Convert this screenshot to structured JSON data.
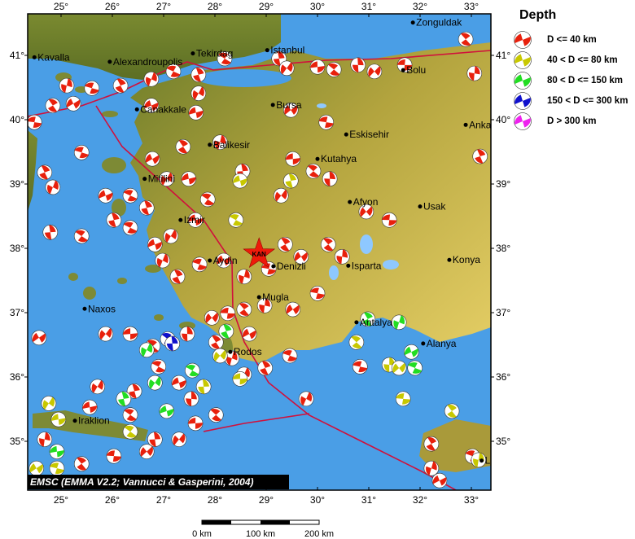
{
  "legend": {
    "title": "Depth",
    "items": [
      {
        "label": "D <= 40 km",
        "color": "#e8200c"
      },
      {
        "label": "40 < D <= 80 km",
        "color": "#c8c800"
      },
      {
        "label": "80 < D <= 150 km",
        "color": "#22dd22"
      },
      {
        "label": "150 < D <= 300 km",
        "color": "#1010cc"
      },
      {
        "label": "D > 300 km",
        "color": "#ee22ee"
      }
    ]
  },
  "attribution": "EMSC (EMMA V2.2; Vannucci & Gasperini, 2004)",
  "axes": {
    "lon_ticks": [
      "25°",
      "26°",
      "27°",
      "28°",
      "29°",
      "30°",
      "31°",
      "32°",
      "33°"
    ],
    "lat_ticks": [
      "41°",
      "40°",
      "39°",
      "38°",
      "37°",
      "36°",
      "35°"
    ]
  },
  "scale_bar": {
    "labels": [
      "0 km",
      "100 km",
      "200 km"
    ]
  },
  "colors": {
    "sea": "#4a9ee6",
    "land_low": "#6d7d2a",
    "land_high": "#e0c860",
    "fault": "#d0103c"
  },
  "epicenter": {
    "label": "KAN",
    "lon": 28.86,
    "lat": 37.91,
    "color": "#ee1a0a"
  },
  "cities": [
    {
      "name": "Kavalla",
      "lon": 24.48,
      "lat": 40.97
    },
    {
      "name": "Alexandroupolis",
      "lon": 25.95,
      "lat": 40.9
    },
    {
      "name": "Tekirdag",
      "lon": 27.57,
      "lat": 41.03
    },
    {
      "name": "Istanbul",
      "lon": 29.02,
      "lat": 41.08
    },
    {
      "name": "Zonguldak",
      "lon": 31.86,
      "lat": 41.51
    },
    {
      "name": "Bolu",
      "lon": 31.67,
      "lat": 40.77
    },
    {
      "name": "Canakkale",
      "lon": 26.48,
      "lat": 40.16
    },
    {
      "name": "Bursa",
      "lon": 29.13,
      "lat": 40.23
    },
    {
      "name": "Eskisehir",
      "lon": 30.56,
      "lat": 39.77
    },
    {
      "name": "Anka",
      "lon": 32.89,
      "lat": 39.92
    },
    {
      "name": "Balikesir",
      "lon": 27.9,
      "lat": 39.61
    },
    {
      "name": "Kutahya",
      "lon": 30.0,
      "lat": 39.39
    },
    {
      "name": "Mitilini",
      "lon": 26.63,
      "lat": 39.08
    },
    {
      "name": "Izmir",
      "lon": 27.33,
      "lat": 38.44
    },
    {
      "name": "Afyon",
      "lon": 30.63,
      "lat": 38.72
    },
    {
      "name": "Usak",
      "lon": 32.0,
      "lat": 38.65
    },
    {
      "name": "Aydin",
      "lon": 27.9,
      "lat": 37.81
    },
    {
      "name": "Denizli",
      "lon": 29.14,
      "lat": 37.72
    },
    {
      "name": "Isparta",
      "lon": 30.6,
      "lat": 37.73
    },
    {
      "name": "Konya",
      "lon": 32.57,
      "lat": 37.82
    },
    {
      "name": "Naxos",
      "lon": 25.46,
      "lat": 37.06
    },
    {
      "name": "Mugla",
      "lon": 28.86,
      "lat": 37.24
    },
    {
      "name": "Antalya",
      "lon": 30.76,
      "lat": 36.85
    },
    {
      "name": "Alanya",
      "lon": 32.06,
      "lat": 36.52
    },
    {
      "name": "Rodos",
      "lon": 28.3,
      "lat": 36.39
    },
    {
      "name": "Iraklion",
      "lon": 25.27,
      "lat": 35.32
    },
    {
      "name": "Li",
      "lon": 33.2,
      "lat": 34.7
    }
  ],
  "events": [
    {
      "lon": 24.48,
      "lat": 39.96,
      "d": 0
    },
    {
      "lon": 24.84,
      "lat": 40.22,
      "d": 0
    },
    {
      "lon": 25.11,
      "lat": 40.53,
      "d": 0
    },
    {
      "lon": 25.24,
      "lat": 40.25,
      "d": 0
    },
    {
      "lon": 25.6,
      "lat": 40.49,
      "d": 0
    },
    {
      "lon": 26.16,
      "lat": 40.53,
      "d": 0
    },
    {
      "lon": 26.76,
      "lat": 40.63,
      "d": 0
    },
    {
      "lon": 26.76,
      "lat": 40.22,
      "d": 0
    },
    {
      "lon": 27.19,
      "lat": 40.75,
      "d": 0
    },
    {
      "lon": 27.68,
      "lat": 40.7,
      "d": 0
    },
    {
      "lon": 27.68,
      "lat": 40.41,
      "d": 0
    },
    {
      "lon": 27.63,
      "lat": 40.11,
      "d": 0
    },
    {
      "lon": 28.19,
      "lat": 40.95,
      "d": 0
    },
    {
      "lon": 29.25,
      "lat": 40.95,
      "d": 0
    },
    {
      "lon": 29.4,
      "lat": 40.8,
      "d": 0
    },
    {
      "lon": 30.0,
      "lat": 40.82,
      "d": 0
    },
    {
      "lon": 30.32,
      "lat": 40.78,
      "d": 0
    },
    {
      "lon": 30.79,
      "lat": 40.85,
      "d": 0
    },
    {
      "lon": 31.11,
      "lat": 40.75,
      "d": 0
    },
    {
      "lon": 31.7,
      "lat": 40.85,
      "d": 0
    },
    {
      "lon": 32.89,
      "lat": 41.25,
      "d": 0
    },
    {
      "lon": 33.06,
      "lat": 40.72,
      "d": 0
    },
    {
      "lon": 29.48,
      "lat": 40.15,
      "d": 0
    },
    {
      "lon": 30.17,
      "lat": 39.96,
      "d": 0
    },
    {
      "lon": 27.38,
      "lat": 39.58,
      "d": 0
    },
    {
      "lon": 28.1,
      "lat": 39.65,
      "d": 0
    },
    {
      "lon": 26.78,
      "lat": 39.39,
      "d": 0
    },
    {
      "lon": 25.4,
      "lat": 39.49,
      "d": 0
    },
    {
      "lon": 24.68,
      "lat": 39.18,
      "d": 0
    },
    {
      "lon": 24.84,
      "lat": 38.95,
      "d": 0
    },
    {
      "lon": 25.87,
      "lat": 38.82,
      "d": 0
    },
    {
      "lon": 26.35,
      "lat": 38.82,
      "d": 0
    },
    {
      "lon": 26.67,
      "lat": 38.63,
      "d": 0
    },
    {
      "lon": 27.06,
      "lat": 39.08,
      "d": 0
    },
    {
      "lon": 27.49,
      "lat": 39.08,
      "d": 0
    },
    {
      "lon": 27.86,
      "lat": 38.76,
      "d": 0
    },
    {
      "lon": 28.54,
      "lat": 39.2,
      "d": 0
    },
    {
      "lon": 29.29,
      "lat": 38.82,
      "d": 0
    },
    {
      "lon": 29.52,
      "lat": 39.39,
      "d": 0
    },
    {
      "lon": 29.92,
      "lat": 39.2,
      "d": 0
    },
    {
      "lon": 30.24,
      "lat": 39.08,
      "d": 0
    },
    {
      "lon": 30.95,
      "lat": 38.57,
      "d": 0
    },
    {
      "lon": 31.4,
      "lat": 38.44,
      "d": 0
    },
    {
      "lon": 30.21,
      "lat": 38.06,
      "d": 0
    },
    {
      "lon": 30.48,
      "lat": 37.87,
      "d": 0
    },
    {
      "lon": 29.68,
      "lat": 37.87,
      "d": 0
    },
    {
      "lon": 29.05,
      "lat": 37.68,
      "d": 0
    },
    {
      "lon": 29.37,
      "lat": 38.06,
      "d": 0
    },
    {
      "lon": 28.57,
      "lat": 37.56,
      "d": 0
    },
    {
      "lon": 28.17,
      "lat": 37.81,
      "d": 0
    },
    {
      "lon": 27.7,
      "lat": 37.75,
      "d": 0
    },
    {
      "lon": 27.27,
      "lat": 37.56,
      "d": 0
    },
    {
      "lon": 26.98,
      "lat": 37.81,
      "d": 0
    },
    {
      "lon": 26.83,
      "lat": 38.06,
      "d": 0
    },
    {
      "lon": 26.35,
      "lat": 38.32,
      "d": 0
    },
    {
      "lon": 26.03,
      "lat": 38.44,
      "d": 0
    },
    {
      "lon": 27.14,
      "lat": 38.19,
      "d": 0
    },
    {
      "lon": 27.62,
      "lat": 38.44,
      "d": 0
    },
    {
      "lon": 25.4,
      "lat": 38.19,
      "d": 0
    },
    {
      "lon": 24.79,
      "lat": 38.25,
      "d": 0
    },
    {
      "lon": 25.87,
      "lat": 36.67,
      "d": 0
    },
    {
      "lon": 26.35,
      "lat": 36.67,
      "d": 0
    },
    {
      "lon": 26.79,
      "lat": 36.48,
      "d": 0
    },
    {
      "lon": 27.46,
      "lat": 36.67,
      "d": 0
    },
    {
      "lon": 27.94,
      "lat": 36.92,
      "d": 0
    },
    {
      "lon": 28.25,
      "lat": 36.99,
      "d": 0
    },
    {
      "lon": 28.57,
      "lat": 37.05,
      "d": 0
    },
    {
      "lon": 28.97,
      "lat": 37.11,
      "d": 0
    },
    {
      "lon": 29.52,
      "lat": 37.05,
      "d": 0
    },
    {
      "lon": 30.0,
      "lat": 37.3,
      "d": 0
    },
    {
      "lon": 28.02,
      "lat": 36.54,
      "d": 0
    },
    {
      "lon": 28.33,
      "lat": 36.29,
      "d": 0
    },
    {
      "lon": 28.67,
      "lat": 36.67,
      "d": 0
    },
    {
      "lon": 29.46,
      "lat": 36.33,
      "d": 0
    },
    {
      "lon": 28.98,
      "lat": 36.14,
      "d": 0
    },
    {
      "lon": 28.57,
      "lat": 36.04,
      "d": 0
    },
    {
      "lon": 27.3,
      "lat": 35.91,
      "d": 0
    },
    {
      "lon": 26.9,
      "lat": 36.16,
      "d": 0
    },
    {
      "lon": 26.43,
      "lat": 35.78,
      "d": 0
    },
    {
      "lon": 25.71,
      "lat": 35.85,
      "d": 0
    },
    {
      "lon": 25.56,
      "lat": 35.53,
      "d": 0
    },
    {
      "lon": 26.35,
      "lat": 35.41,
      "d": 0
    },
    {
      "lon": 26.83,
      "lat": 35.03,
      "d": 0
    },
    {
      "lon": 27.3,
      "lat": 35.03,
      "d": 0
    },
    {
      "lon": 27.62,
      "lat": 35.28,
      "d": 0
    },
    {
      "lon": 28.02,
      "lat": 35.41,
      "d": 0
    },
    {
      "lon": 27.54,
      "lat": 35.66,
      "d": 0
    },
    {
      "lon": 26.67,
      "lat": 34.84,
      "d": 0
    },
    {
      "lon": 26.03,
      "lat": 34.77,
      "d": 0
    },
    {
      "lon": 25.4,
      "lat": 34.65,
      "d": 0
    },
    {
      "lon": 24.68,
      "lat": 35.03,
      "d": 0
    },
    {
      "lon": 24.57,
      "lat": 36.61,
      "d": 0
    },
    {
      "lon": 30.83,
      "lat": 36.16,
      "d": 0
    },
    {
      "lon": 32.22,
      "lat": 34.96,
      "d": 0
    },
    {
      "lon": 32.22,
      "lat": 34.58,
      "d": 0
    },
    {
      "lon": 32.38,
      "lat": 34.39,
      "d": 0
    },
    {
      "lon": 33.02,
      "lat": 34.77,
      "d": 0
    },
    {
      "lon": 33.17,
      "lat": 39.43,
      "d": 0
    },
    {
      "lon": 29.78,
      "lat": 35.66,
      "d": 0
    },
    {
      "lon": 28.49,
      "lat": 39.05,
      "d": 1
    },
    {
      "lon": 28.41,
      "lat": 38.44,
      "d": 1
    },
    {
      "lon": 29.48,
      "lat": 39.05,
      "d": 1
    },
    {
      "lon": 24.76,
      "lat": 35.59,
      "d": 1
    },
    {
      "lon": 24.95,
      "lat": 35.34,
      "d": 1
    },
    {
      "lon": 26.35,
      "lat": 35.15,
      "d": 1
    },
    {
      "lon": 27.78,
      "lat": 35.85,
      "d": 1
    },
    {
      "lon": 28.1,
      "lat": 36.33,
      "d": 1
    },
    {
      "lon": 28.49,
      "lat": 35.97,
      "d": 1
    },
    {
      "lon": 30.76,
      "lat": 36.54,
      "d": 1
    },
    {
      "lon": 31.4,
      "lat": 36.19,
      "d": 1
    },
    {
      "lon": 31.59,
      "lat": 36.14,
      "d": 1
    },
    {
      "lon": 31.67,
      "lat": 35.66,
      "d": 1
    },
    {
      "lon": 32.62,
      "lat": 35.47,
      "d": 1
    },
    {
      "lon": 33.14,
      "lat": 34.71,
      "d": 1
    },
    {
      "lon": 24.52,
      "lat": 34.58,
      "d": 1
    },
    {
      "lon": 24.92,
      "lat": 34.58,
      "d": 1
    },
    {
      "lon": 30.98,
      "lat": 36.9,
      "d": 2
    },
    {
      "lon": 31.59,
      "lat": 36.85,
      "d": 2
    },
    {
      "lon": 31.83,
      "lat": 36.39,
      "d": 2
    },
    {
      "lon": 31.9,
      "lat": 36.14,
      "d": 2
    },
    {
      "lon": 28.22,
      "lat": 36.71,
      "d": 2
    },
    {
      "lon": 26.67,
      "lat": 36.42,
      "d": 2
    },
    {
      "lon": 27.06,
      "lat": 35.47,
      "d": 2
    },
    {
      "lon": 27.56,
      "lat": 36.1,
      "d": 2
    },
    {
      "lon": 26.22,
      "lat": 35.66,
      "d": 2
    },
    {
      "lon": 26.83,
      "lat": 35.91,
      "d": 2
    },
    {
      "lon": 24.92,
      "lat": 34.84,
      "d": 2
    },
    {
      "lon": 27.08,
      "lat": 36.59,
      "d": 3
    },
    {
      "lon": 27.17,
      "lat": 36.52,
      "d": 3
    }
  ]
}
